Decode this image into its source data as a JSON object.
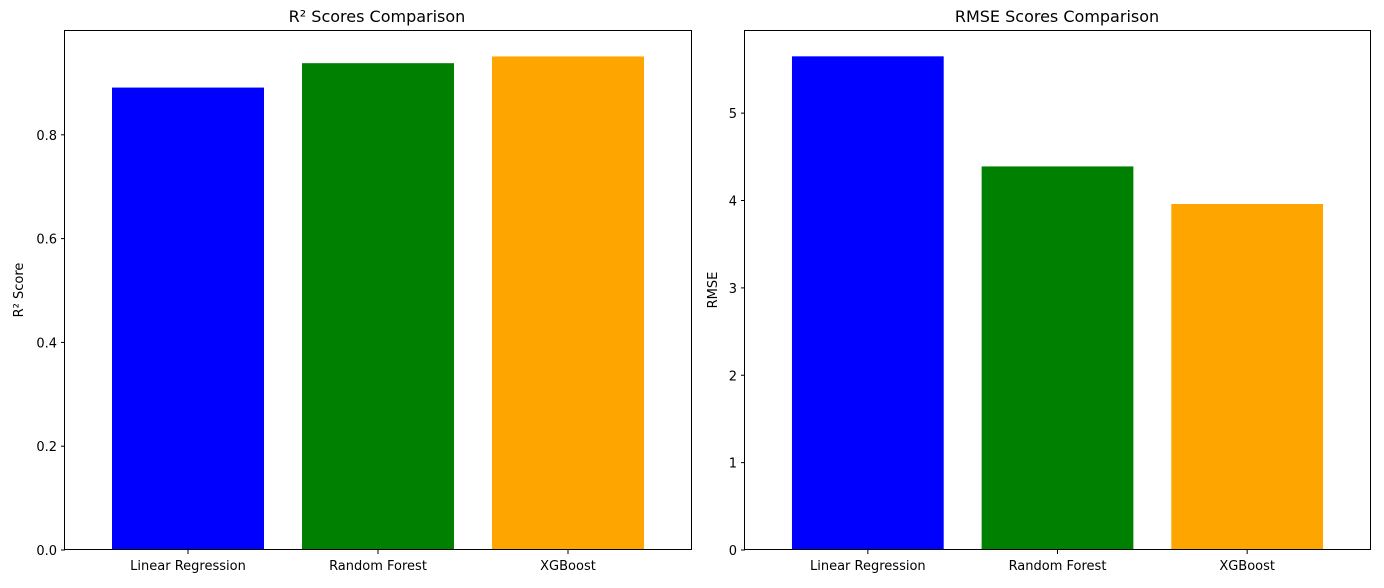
{
  "chart_data": [
    {
      "type": "bar",
      "title": "R² Scores Comparison",
      "xlabel": "",
      "ylabel": "R² Score",
      "categories": [
        "Linear Regression",
        "Random Forest",
        "XGBoost"
      ],
      "values": [
        0.891,
        0.938,
        0.951
      ],
      "colors": [
        "#0000ff",
        "#008000",
        "#ffa500"
      ],
      "ylim": [
        0,
        1.0
      ],
      "yticks": [
        0.0,
        0.2,
        0.4,
        0.6,
        0.8
      ],
      "ytick_labels": [
        "0.0",
        "0.2",
        "0.4",
        "0.6",
        "0.8"
      ],
      "grid": false,
      "legend": "none"
    },
    {
      "type": "bar",
      "title": "RMSE Scores Comparison",
      "xlabel": "",
      "ylabel": "RMSE",
      "categories": [
        "Linear Regression",
        "Random Forest",
        "XGBoost"
      ],
      "values": [
        5.65,
        4.39,
        3.96
      ],
      "colors": [
        "#0000ff",
        "#008000",
        "#ffa500"
      ],
      "ylim": [
        0,
        5.94
      ],
      "yticks": [
        0,
        1,
        2,
        3,
        4,
        5
      ],
      "ytick_labels": [
        "0",
        "1",
        "2",
        "3",
        "4",
        "5"
      ],
      "grid": false,
      "legend": "none"
    }
  ]
}
